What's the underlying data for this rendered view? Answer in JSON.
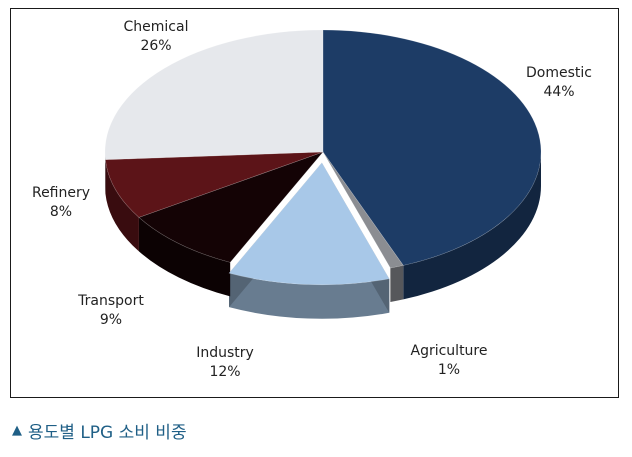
{
  "chart_data": {
    "type": "pie",
    "slices": [
      {
        "label": "Domestic",
        "value": 44,
        "value_label": "44%",
        "color": "#1d3c66"
      },
      {
        "label": "Agriculture",
        "value": 1,
        "value_label": "1%",
        "color": "#8b8d92"
      },
      {
        "label": "Industry",
        "value": 12,
        "value_label": "12%",
        "color": "#a8c8e8"
      },
      {
        "label": "Transport",
        "value": 9,
        "value_label": "9%",
        "color": "#140305"
      },
      {
        "label": "Refinery",
        "value": 8,
        "value_label": "8%",
        "color": "#5c1418"
      },
      {
        "label": "Chemical",
        "value": 26,
        "value_label": "26%",
        "color": "#e6e8ec"
      }
    ],
    "style": "3d-pie"
  },
  "caption": {
    "marker": "▲",
    "text": "용도별 LPG 소비 비중"
  }
}
